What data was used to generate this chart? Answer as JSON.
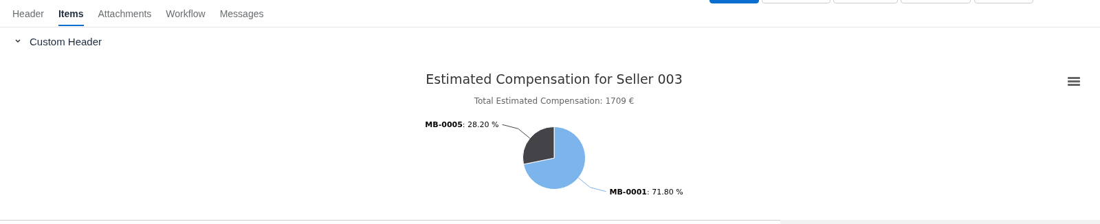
{
  "chart_data": {
    "type": "pie",
    "title": "Estimated Compensation for Seller 003",
    "subtitle": "Total Estimated Compensation: 1709 €",
    "categories": [
      "MB-0001",
      "MB-0005"
    ],
    "values": [
      71.8,
      28.2
    ],
    "colors": [
      "#7cb5ec",
      "#434348"
    ],
    "value_labels": [
      ": 71.80 %",
      ": 28.20 %"
    ],
    "legend": false,
    "annotations": [
      "Header",
      "Items",
      "Attachments",
      "Workflow",
      "Messages",
      "Custom Header"
    ]
  }
}
